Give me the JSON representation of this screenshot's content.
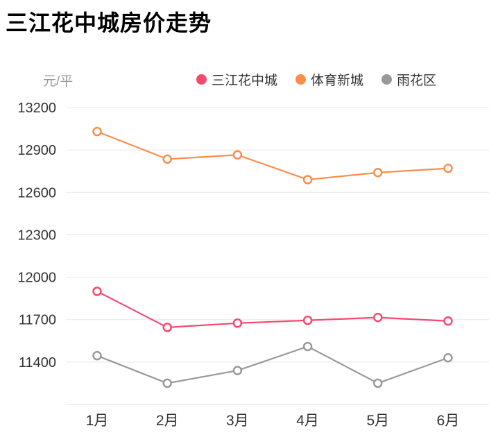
{
  "chart_data": {
    "type": "line",
    "title": "三江花中城房价走势",
    "ylabel": "元/平",
    "xlabel": "",
    "categories": [
      "1月",
      "2月",
      "3月",
      "4月",
      "5月",
      "6月"
    ],
    "series": [
      {
        "name": "三江花中城",
        "color": "#f8486e",
        "values": [
          11900,
          11645,
          11675,
          11695,
          11715,
          11690
        ]
      },
      {
        "name": "体育新城",
        "color": "#fb8d4b",
        "values": [
          13030,
          12835,
          12865,
          12690,
          12740,
          12770
        ]
      },
      {
        "name": "雨花区",
        "color": "#999999",
        "values": [
          11445,
          11250,
          11340,
          11510,
          11250,
          11430
        ]
      }
    ],
    "y_ticks": [
      13200,
      12900,
      12600,
      12300,
      12000,
      11700,
      11400
    ],
    "ylim": [
      11100,
      13200
    ],
    "grid": true,
    "legend_position": "top-right",
    "grid_color": "#e8e8e8",
    "axis_line_color": "#e0e0e0",
    "tick_text_color": "#333333",
    "unit_text_color": "#999999",
    "marker_fill": "#ffffff"
  }
}
